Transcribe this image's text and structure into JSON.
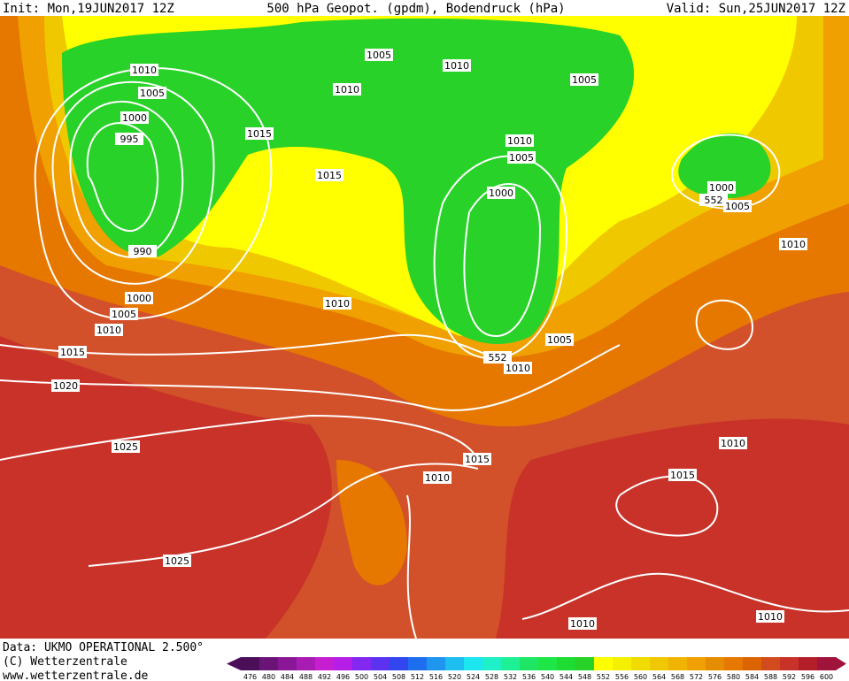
{
  "header": {
    "init": "Init: Mon,19JUN2017 12Z",
    "title": "500 hPa Geopot. (gpdm), Bodendruck (hPa)",
    "valid": "Valid: Sun,25JUN2017 12Z"
  },
  "isobar_labels": [
    "1010",
    "1005",
    "1010",
    "1005",
    "1010",
    "1005",
    "1000",
    "1015",
    "1010",
    "995",
    "1005",
    "1015",
    "1000",
    "1000",
    "552",
    "1005",
    "1010",
    "990",
    "1000",
    "1010",
    "1005",
    "1010",
    "1005",
    "1015",
    "552",
    "1010",
    "1020",
    "1010",
    "1025",
    "1015",
    "1010",
    "1015",
    "1025",
    "1010",
    "1010"
  ],
  "footer": {
    "data": "Data: UKMO OPERATIONAL 2.500°",
    "copyright": "(C) Wetterzentrale",
    "url": "www.wetterzentrale.de"
  },
  "scale": {
    "values": [
      476,
      480,
      484,
      488,
      492,
      496,
      500,
      504,
      508,
      512,
      516,
      520,
      524,
      528,
      532,
      536,
      540,
      544,
      548,
      552,
      556,
      560,
      564,
      568,
      572,
      576,
      580,
      584,
      588,
      592,
      596,
      600
    ],
    "colors": [
      "#4b0f5a",
      "#6a1478",
      "#8a1896",
      "#a81cb4",
      "#c81ed2",
      "#b41ee6",
      "#8228f0",
      "#5a32f0",
      "#3246f0",
      "#1e6ef0",
      "#1e96f0",
      "#1ebef0",
      "#1ee6f0",
      "#1ef0c8",
      "#1ef096",
      "#1ee664",
      "#1ee646",
      "#1edc32",
      "#28d228",
      "#ffff00",
      "#f5f000",
      "#f0dc00",
      "#f0c800",
      "#f0b400",
      "#f0a000",
      "#e68c00",
      "#e67800",
      "#dc6400",
      "#d24b1e",
      "#c83228",
      "#b41e28",
      "#a0143c"
    ]
  }
}
